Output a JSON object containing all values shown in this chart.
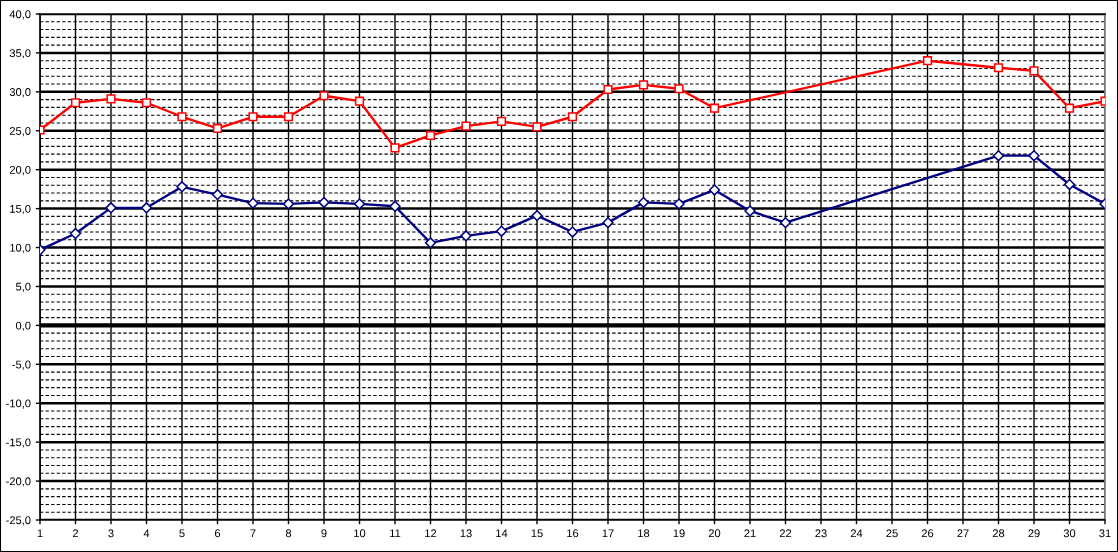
{
  "chart_data": {
    "type": "line",
    "categories": [
      "1",
      "2",
      "3",
      "4",
      "5",
      "6",
      "7",
      "8",
      "9",
      "10",
      "11",
      "12",
      "13",
      "14",
      "15",
      "16",
      "17",
      "18",
      "19",
      "20",
      "21",
      "22",
      "23",
      "24",
      "25",
      "26",
      "27",
      "28",
      "29",
      "30",
      "31"
    ],
    "series": [
      {
        "color": "#ff0000",
        "marker": "square",
        "values": [
          25.1,
          28.6,
          29.1,
          28.6,
          26.8,
          25.3,
          26.8,
          26.8,
          29.5,
          28.8,
          22.8,
          24.4,
          25.6,
          26.2,
          25.5,
          26.8,
          30.3,
          30.9,
          30.4,
          27.9,
          null,
          null,
          null,
          null,
          null,
          34.0,
          null,
          33.1,
          32.7,
          27.9,
          28.8
        ]
      },
      {
        "color": "#000080",
        "marker": "diamond",
        "values": [
          9.7,
          11.8,
          15.1,
          15.1,
          17.8,
          16.8,
          15.7,
          15.6,
          15.8,
          15.6,
          15.3,
          10.6,
          11.5,
          12.1,
          14.1,
          12.0,
          13.2,
          15.8,
          15.6,
          17.4,
          14.7,
          13.2,
          null,
          null,
          null,
          null,
          null,
          21.8,
          21.8,
          18.1,
          15.6
        ]
      }
    ],
    "ylim": [
      -25,
      40
    ],
    "yticks": [
      {
        "value": -25,
        "label": "-25,0"
      },
      {
        "value": -24,
        "label": null
      },
      {
        "value": -23,
        "label": null
      },
      {
        "value": -22,
        "label": null
      },
      {
        "value": -21,
        "label": null
      },
      {
        "value": -20,
        "label": "-20,0"
      },
      {
        "value": -19,
        "label": null
      },
      {
        "value": -18,
        "label": null
      },
      {
        "value": -17,
        "label": null
      },
      {
        "value": -16,
        "label": null
      },
      {
        "value": -15,
        "label": "-15,0"
      },
      {
        "value": -14,
        "label": null
      },
      {
        "value": -13,
        "label": null
      },
      {
        "value": -12,
        "label": null
      },
      {
        "value": -11,
        "label": null
      },
      {
        "value": -10,
        "label": "-10,0"
      },
      {
        "value": -9,
        "label": null
      },
      {
        "value": -8,
        "label": null
      },
      {
        "value": -7,
        "label": null
      },
      {
        "value": -6,
        "label": null
      },
      {
        "value": -5,
        "label": "-5,0"
      },
      {
        "value": -4,
        "label": null
      },
      {
        "value": -3,
        "label": null
      },
      {
        "value": -2,
        "label": null
      },
      {
        "value": -1,
        "label": null
      },
      {
        "value": 0,
        "label": "0,0"
      },
      {
        "value": 1,
        "label": null
      },
      {
        "value": 2,
        "label": null
      },
      {
        "value": 3,
        "label": null
      },
      {
        "value": 4,
        "label": null
      },
      {
        "value": 5,
        "label": "5,0"
      },
      {
        "value": 6,
        "label": null
      },
      {
        "value": 7,
        "label": null
      },
      {
        "value": 8,
        "label": null
      },
      {
        "value": 9,
        "label": null
      },
      {
        "value": 10,
        "label": "10,0"
      },
      {
        "value": 11,
        "label": null
      },
      {
        "value": 12,
        "label": null
      },
      {
        "value": 13,
        "label": null
      },
      {
        "value": 14,
        "label": null
      },
      {
        "value": 15,
        "label": "15,0"
      },
      {
        "value": 16,
        "label": null
      },
      {
        "value": 17,
        "label": null
      },
      {
        "value": 18,
        "label": null
      },
      {
        "value": 19,
        "label": null
      },
      {
        "value": 20,
        "label": "20,0"
      },
      {
        "value": 21,
        "label": null
      },
      {
        "value": 22,
        "label": null
      },
      {
        "value": 23,
        "label": null
      },
      {
        "value": 24,
        "label": null
      },
      {
        "value": 25,
        "label": "25,0"
      },
      {
        "value": 26,
        "label": null
      },
      {
        "value": 27,
        "label": null
      },
      {
        "value": 28,
        "label": null
      },
      {
        "value": 29,
        "label": null
      },
      {
        "value": 30,
        "label": "30,0"
      },
      {
        "value": 31,
        "label": null
      },
      {
        "value": 32,
        "label": null
      },
      {
        "value": 33,
        "label": null
      },
      {
        "value": 34,
        "label": null
      },
      {
        "value": 35,
        "label": "35,0"
      },
      {
        "value": 36,
        "label": null
      },
      {
        "value": 37,
        "label": null
      },
      {
        "value": 38,
        "label": null
      },
      {
        "value": 39,
        "label": null
      },
      {
        "value": 40,
        "label": "40,0"
      }
    ],
    "ref_lines": [
      {
        "axis": "y",
        "value": 0,
        "color": "#000000"
      }
    ],
    "grid": true,
    "line_style": "solid"
  }
}
